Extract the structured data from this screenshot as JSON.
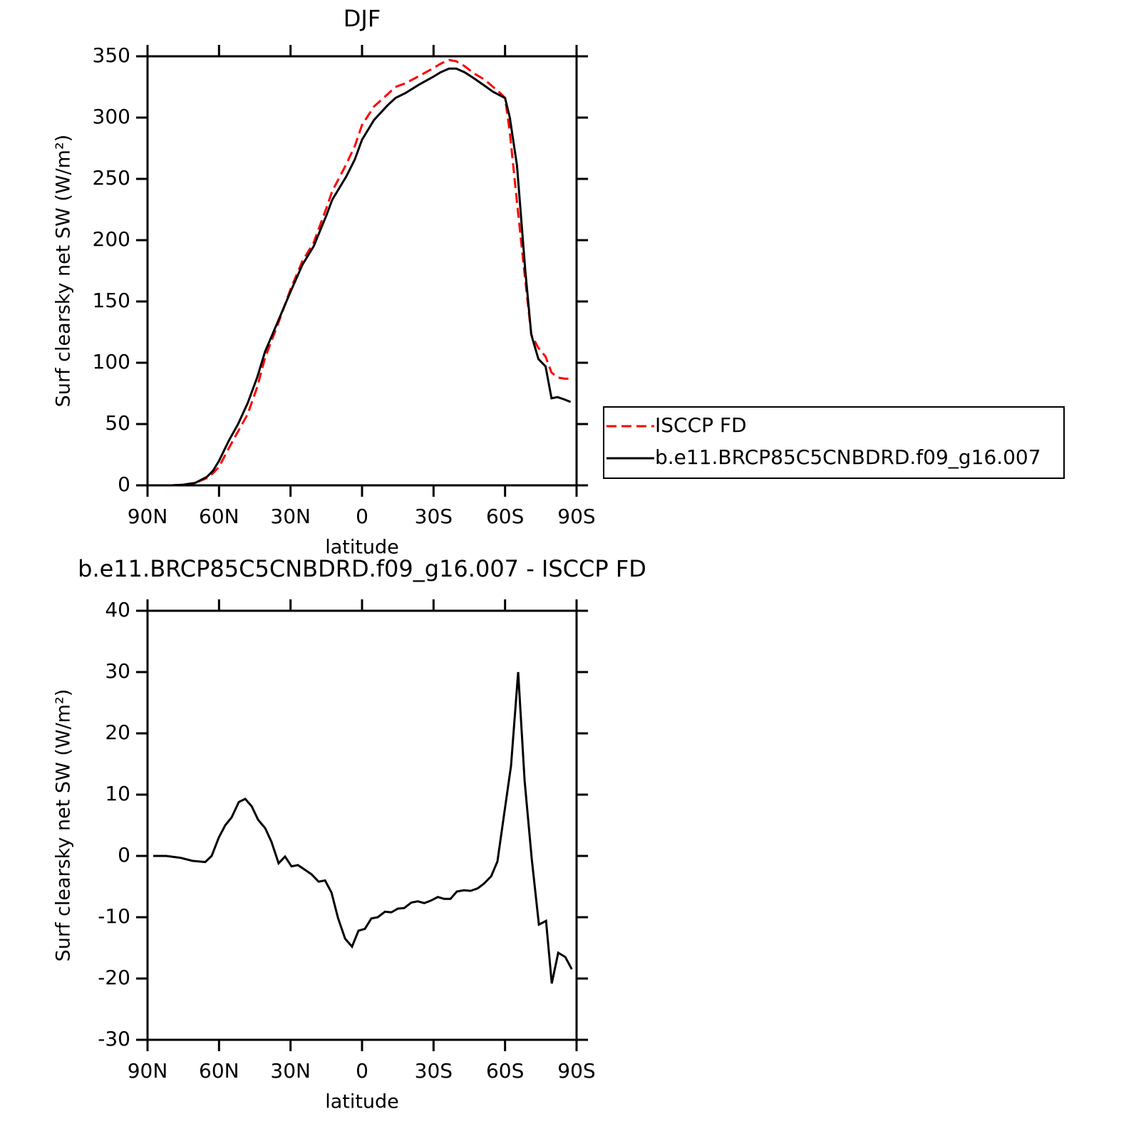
{
  "chart_data": [
    {
      "type": "line",
      "title": "DJF",
      "xlabel": "latitude",
      "ylabel": "Surf clearsky net SW (W/m²)",
      "x": [
        87.5,
        80,
        75,
        70,
        65,
        62.5,
        60,
        56,
        52,
        48,
        44,
        40.7,
        35,
        30,
        25,
        20.3,
        15,
        12.5,
        6.6,
        3,
        0,
        -5,
        -10.7,
        -14,
        -18.2,
        -24,
        -29.6,
        -33,
        -36.5,
        -39.5,
        -43,
        -47,
        -51.4,
        -55,
        -58,
        -60,
        -62,
        -65,
        -68.5,
        -71,
        -74,
        -77,
        -79.5,
        -82,
        -85,
        -87.5
      ],
      "series": [
        {
          "name": "ISCCP FD",
          "color": "#ff0000",
          "dash": true,
          "values": [
            0,
            0,
            0.5,
            2,
            6,
            10,
            15,
            30,
            44,
            58,
            80,
            104,
            133,
            160,
            183,
            198,
            226,
            240,
            262,
            277,
            294,
            309,
            319,
            325,
            328,
            334,
            340,
            344,
            347,
            346,
            342,
            336,
            331,
            325,
            320,
            316,
            288,
            231,
            167,
            123,
            112,
            105,
            92,
            88,
            87,
            87
          ]
        },
        {
          "name": "b.e11.BRCP85C5CNBDRD.f09_g16.007",
          "color": "#000000",
          "dash": false,
          "values": [
            0,
            0,
            0.5,
            2,
            7,
            12,
            20,
            36,
            50,
            67,
            88,
            109,
            135,
            158,
            180,
            195,
            220,
            233,
            252,
            266,
            282,
            298,
            310,
            316,
            320,
            327,
            333,
            337,
            340,
            340,
            337,
            332,
            326,
            321,
            318,
            316,
            300,
            261,
            175,
            123,
            103,
            97,
            71,
            72,
            70,
            68
          ]
        }
      ],
      "xlim": [
        90,
        -90
      ],
      "xticks": [
        {
          "value": 90,
          "label": "90N"
        },
        {
          "value": 60,
          "label": "60N"
        },
        {
          "value": 30,
          "label": "30N"
        },
        0,
        {
          "value": -30,
          "label": "30S"
        },
        {
          "value": -60,
          "label": "60S"
        },
        {
          "value": -90,
          "label": "90S"
        }
      ],
      "ylim": [
        0,
        350
      ],
      "yticks": [
        0,
        50,
        100,
        150,
        200,
        250,
        300,
        350
      ],
      "legend": "right"
    },
    {
      "type": "line",
      "title": "b.e11.BRCP85C5CNBDRD.f09_g16.007 - ISCCP FD",
      "xlabel": "latitude",
      "ylabel": "Surf clearsky net SW (W/m²)",
      "x": [
        87.6,
        82.2,
        76.2,
        71.2,
        65.8,
        63.1,
        60.1,
        57.4,
        54.7,
        51.7,
        49,
        46.3,
        43.6,
        40.6,
        38,
        35,
        32.3,
        29.6,
        26.9,
        24.2,
        21.2,
        18.2,
        15.5,
        12.8,
        10.1,
        7.1,
        4.2,
        1.5,
        -1.2,
        -3.9,
        -6.6,
        -9.6,
        -12.3,
        -15,
        -17.7,
        -20.7,
        -23.4,
        -26.1,
        -28.8,
        -31.8,
        -34.4,
        -37.1,
        -39.8,
        -42.8,
        -45.5,
        -48.5,
        -51.2,
        -54.2,
        -56.8,
        -59.5,
        -62.5,
        -65.5,
        -68.2,
        -71.2,
        -74.2,
        -77.2,
        -79.6,
        -82.3,
        -85.3,
        -88
      ],
      "series": [
        {
          "color": "#000000",
          "dash": false,
          "values": [
            0,
            0,
            -0.3,
            -0.8,
            -1,
            0,
            3,
            5,
            6.3,
            8.8,
            9.3,
            8.1,
            5.9,
            4.5,
            2.3,
            -1.2,
            -0.1,
            -1.7,
            -1.5,
            -2.2,
            -3,
            -4.2,
            -4,
            -6,
            -10.1,
            -13.5,
            -14.8,
            -12.2,
            -11.9,
            -10.2,
            -10,
            -9.1,
            -9.2,
            -8.6,
            -8.5,
            -7.6,
            -7.4,
            -7.7,
            -7.3,
            -6.7,
            -7,
            -7,
            -5.8,
            -5.6,
            -5.7,
            -5.3,
            -4.5,
            -3.3,
            -0.9,
            6.5,
            14.7,
            30,
            12.3,
            -0.5,
            -11.2,
            -10.6,
            -20.8,
            -15.8,
            -16.5,
            -18.5
          ]
        }
      ],
      "xlim": [
        90,
        -90
      ],
      "xticks": [
        {
          "value": 90,
          "label": "90N"
        },
        {
          "value": 60,
          "label": "60N"
        },
        {
          "value": 30,
          "label": "30N"
        },
        0,
        {
          "value": -30,
          "label": "30S"
        },
        {
          "value": -60,
          "label": "60S"
        },
        {
          "value": -90,
          "label": "90S"
        }
      ],
      "ylim": [
        -30,
        40
      ],
      "yticks": [
        -30,
        -20,
        -10,
        0,
        10,
        20,
        30,
        40
      ]
    }
  ]
}
